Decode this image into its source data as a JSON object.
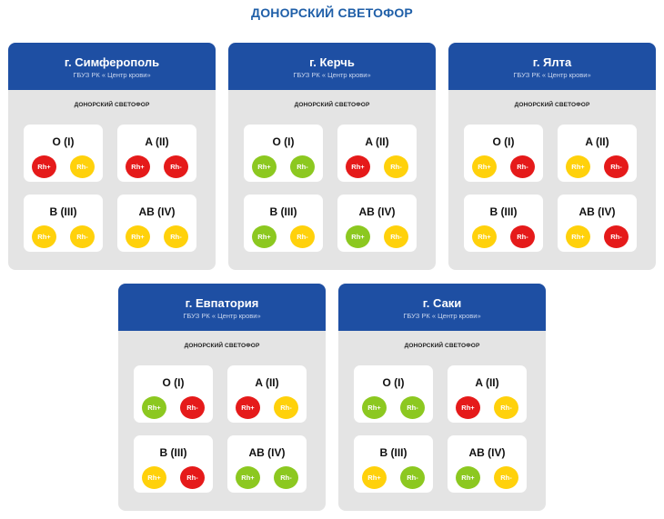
{
  "title": "ДОНОРСКИЙ СВЕТОФОР",
  "colors": {
    "red": "#e51a1a",
    "yellow": "#ffd10b",
    "green": "#8cc820",
    "header": "#1e4fa3",
    "title": "#1f5fa8"
  },
  "cards": [
    {
      "city": "г. Симферополь",
      "org": "ГБУЗ РК « Центр крови»",
      "subtitle": "ДОНОРСКИЙ СВЕТОФОР",
      "groups": [
        {
          "name": "O (I)",
          "rh_pos": "Rh+",
          "rh_neg": "Rh-",
          "pos_status": "red",
          "neg_status": "yellow"
        },
        {
          "name": "A (II)",
          "rh_pos": "Rh+",
          "rh_neg": "Rh-",
          "pos_status": "red",
          "neg_status": "red"
        },
        {
          "name": "B (III)",
          "rh_pos": "Rh+",
          "rh_neg": "Rh-",
          "pos_status": "yellow",
          "neg_status": "yellow"
        },
        {
          "name": "AB (IV)",
          "rh_pos": "Rh+",
          "rh_neg": "Rh-",
          "pos_status": "yellow",
          "neg_status": "yellow"
        }
      ]
    },
    {
      "city": "г. Керчь",
      "org": "ГБУЗ РК « Центр крови»",
      "subtitle": "ДОНОРСКИЙ СВЕТОФОР",
      "groups": [
        {
          "name": "O (I)",
          "rh_pos": "Rh+",
          "rh_neg": "Rh-",
          "pos_status": "green",
          "neg_status": "green"
        },
        {
          "name": "A (II)",
          "rh_pos": "Rh+",
          "rh_neg": "Rh-",
          "pos_status": "red",
          "neg_status": "yellow"
        },
        {
          "name": "B (III)",
          "rh_pos": "Rh+",
          "rh_neg": "Rh-",
          "pos_status": "green",
          "neg_status": "yellow"
        },
        {
          "name": "AB (IV)",
          "rh_pos": "Rh+",
          "rh_neg": "Rh-",
          "pos_status": "green",
          "neg_status": "yellow"
        }
      ]
    },
    {
      "city": "г. Ялта",
      "org": "ГБУЗ РК « Центр крови»",
      "subtitle": "ДОНОРСКИЙ СВЕТОФОР",
      "groups": [
        {
          "name": "O (I)",
          "rh_pos": "Rh+",
          "rh_neg": "Rh-",
          "pos_status": "yellow",
          "neg_status": "red"
        },
        {
          "name": "A (II)",
          "rh_pos": "Rh+",
          "rh_neg": "Rh-",
          "pos_status": "yellow",
          "neg_status": "red"
        },
        {
          "name": "B (III)",
          "rh_pos": "Rh+",
          "rh_neg": "Rh-",
          "pos_status": "yellow",
          "neg_status": "red"
        },
        {
          "name": "AB (IV)",
          "rh_pos": "Rh+",
          "rh_neg": "Rh-",
          "pos_status": "yellow",
          "neg_status": "red"
        }
      ]
    },
    {
      "city": "г. Евпатория",
      "org": "ГБУЗ РК « Центр крови»",
      "subtitle": "ДОНОРСКИЙ СВЕТОФОР",
      "groups": [
        {
          "name": "O (I)",
          "rh_pos": "Rh+",
          "rh_neg": "Rh-",
          "pos_status": "green",
          "neg_status": "red"
        },
        {
          "name": "A (II)",
          "rh_pos": "Rh+",
          "rh_neg": "Rh-",
          "pos_status": "red",
          "neg_status": "yellow"
        },
        {
          "name": "B (III)",
          "rh_pos": "Rh+",
          "rh_neg": "Rh-",
          "pos_status": "yellow",
          "neg_status": "red"
        },
        {
          "name": "AB (IV)",
          "rh_pos": "Rh+",
          "rh_neg": "Rh-",
          "pos_status": "green",
          "neg_status": "green"
        }
      ]
    },
    {
      "city": "г. Саки",
      "org": "ГБУЗ РК « Центр крови»",
      "subtitle": "ДОНОРСКИЙ СВЕТОФОР",
      "groups": [
        {
          "name": "O (I)",
          "rh_pos": "Rh+",
          "rh_neg": "Rh-",
          "pos_status": "green",
          "neg_status": "green"
        },
        {
          "name": "A (II)",
          "rh_pos": "Rh+",
          "rh_neg": "Rh-",
          "pos_status": "red",
          "neg_status": "yellow"
        },
        {
          "name": "B (III)",
          "rh_pos": "Rh+",
          "rh_neg": "Rh-",
          "pos_status": "yellow",
          "neg_status": "green"
        },
        {
          "name": "AB (IV)",
          "rh_pos": "Rh+",
          "rh_neg": "Rh-",
          "pos_status": "green",
          "neg_status": "yellow"
        }
      ]
    }
  ]
}
